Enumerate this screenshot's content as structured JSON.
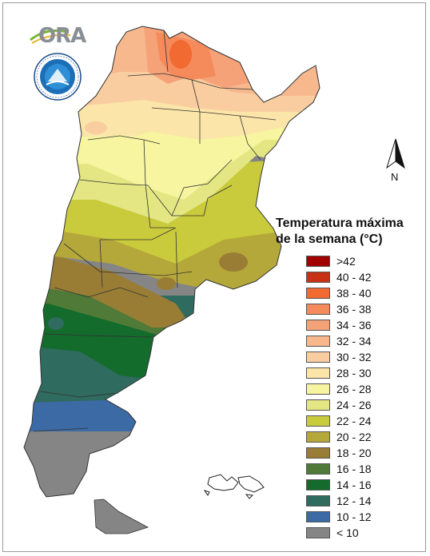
{
  "legend": {
    "title_line1": "Temperatura máxima",
    "title_line2": "de la semana (°C)",
    "classes": [
      {
        "label": ">42",
        "color": "#a00000"
      },
      {
        "label": "40 - 42",
        "color": "#c83214"
      },
      {
        "label": "38 - 40",
        "color": "#f06a32"
      },
      {
        "label": "36 - 38",
        "color": "#f58a5a"
      },
      {
        "label": "34 - 36",
        "color": "#f5a278"
      },
      {
        "label": "32 - 34",
        "color": "#f7b88e"
      },
      {
        "label": "30 - 32",
        "color": "#f9cda0"
      },
      {
        "label": "28 - 30",
        "color": "#fbe5a8"
      },
      {
        "label": "26 - 28",
        "color": "#f7f5a0"
      },
      {
        "label": "24 - 26",
        "color": "#e3e682"
      },
      {
        "label": "22 - 24",
        "color": "#c9cb3c"
      },
      {
        "label": "20 - 22",
        "color": "#b5a83a"
      },
      {
        "label": "18 - 20",
        "color": "#9a7d35"
      },
      {
        "label": "16 - 18",
        "color": "#4f7a37"
      },
      {
        "label": "14 - 16",
        "color": "#136b2c"
      },
      {
        "label": "12 - 14",
        "color": "#2f6b5e"
      },
      {
        "label": "10 - 12",
        "color": "#3b6aa5"
      },
      {
        "label": "< 10",
        "color": "#858585"
      }
    ]
  },
  "north_arrow": {
    "label": "N"
  },
  "logos": {
    "ora": "ORA",
    "smn": "smn-logo"
  }
}
